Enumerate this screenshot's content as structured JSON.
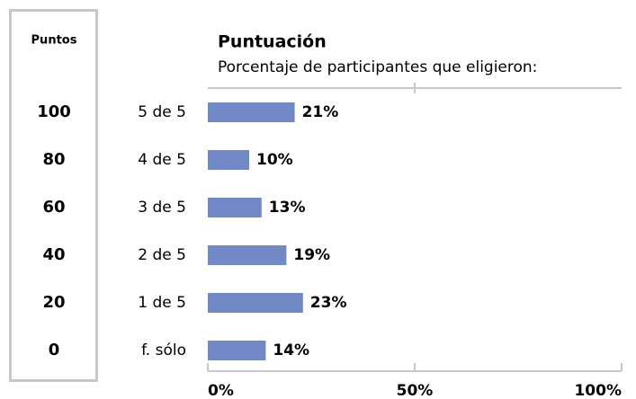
{
  "chart_data": {
    "type": "bar",
    "title": "Puntuación",
    "subtitle": "Porcentaje de participantes que eligieron:",
    "categories": [
      "5 de 5",
      "4 de 5",
      "3 de 5",
      "2 de 5",
      "1 de 5",
      "f. sólo"
    ],
    "values": [
      21,
      10,
      13,
      19,
      23,
      14
    ],
    "value_labels": [
      "21%",
      "10%",
      "13%",
      "19%",
      "23%",
      "14%"
    ],
    "color": "#7189c6",
    "xlim": [
      0,
      100
    ],
    "xticks": [
      {
        "value": 0,
        "label": "0%"
      },
      {
        "value": 50,
        "label": "50%"
      },
      {
        "value": 100,
        "label": "100%"
      }
    ],
    "points_header": "Puntos",
    "points": [
      100,
      80,
      60,
      40,
      20,
      0
    ]
  }
}
